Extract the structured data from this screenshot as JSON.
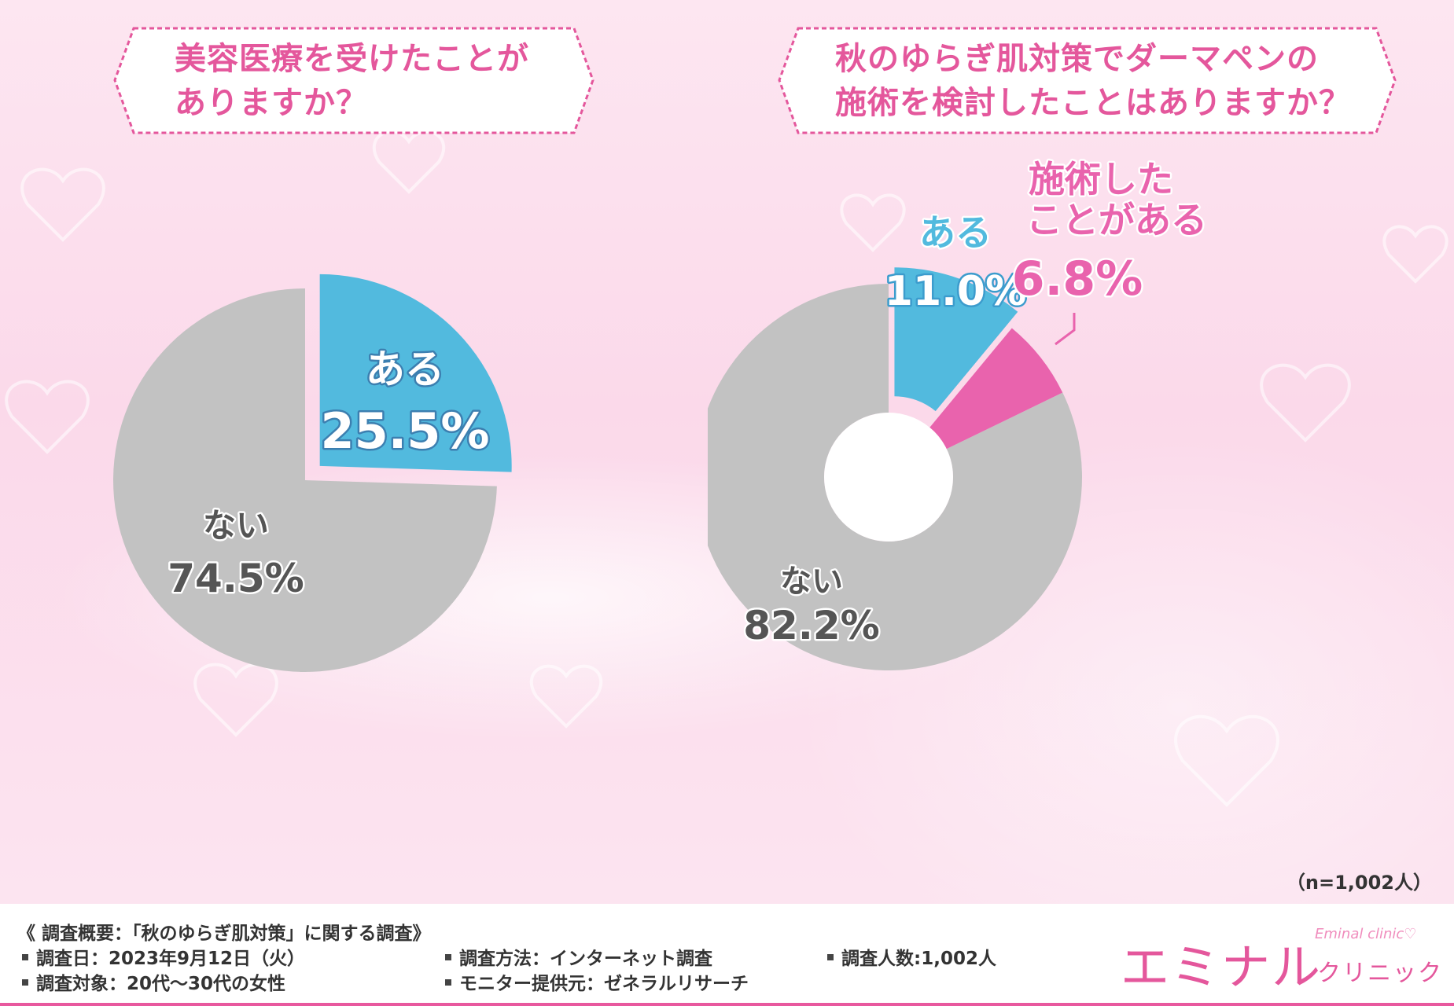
{
  "colors": {
    "accent_pink": "#e4579c",
    "slice_blue": "#52bade",
    "slice_gray": "#c2c2c2",
    "slice_pink": "#e963ad"
  },
  "chart_data": [
    {
      "type": "pie",
      "title": "美容医療を受けたことが\nありますか？",
      "slices": [
        {
          "label": "ある",
          "value": 25.5,
          "value_text": "25.5%"
        },
        {
          "label": "ない",
          "value": 74.5,
          "value_text": "74.5%"
        }
      ]
    },
    {
      "type": "pie",
      "title": "秋のゆらぎ肌対策でダーマペンの\n施術を検討したことはありますか？",
      "slices": [
        {
          "label": "ある",
          "value": 11.0,
          "value_text": "11.0%"
        },
        {
          "label": "施術したことがある",
          "label_lines": [
            "施術した",
            "ことがある"
          ],
          "value": 6.8,
          "value_text": "6.8%"
        },
        {
          "label": "ない",
          "value": 82.2,
          "value_text": "82.2%"
        }
      ]
    }
  ],
  "sample_size": "（n=1,002人）",
  "footer": {
    "survey_title": "《 調査概要：「秋のゆらぎ肌対策」に関する調査》",
    "date": "調査日：2023年9月12日（火）",
    "target": "調査対象：20代～30代の女性",
    "method": "調査方法：インターネット調査",
    "provider": "モニター提供元：ゼネラルリサーチ",
    "count": "調査人数:1,002人"
  },
  "logo": {
    "main": "エミナル",
    "sub": "クリニック",
    "en": "Eminal clinic♡"
  }
}
